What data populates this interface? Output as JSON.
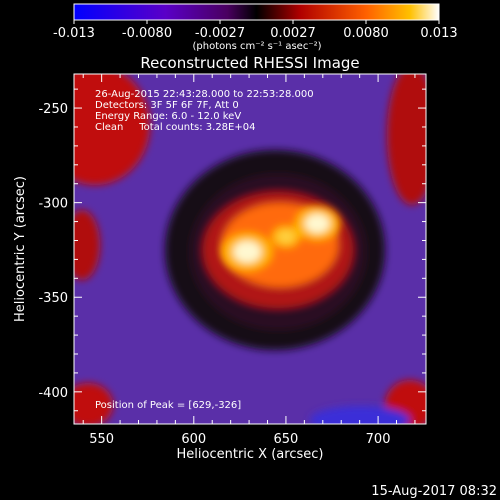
{
  "chart_data": {
    "type": "heatmap",
    "title": "Reconstructed RHESSI Image",
    "xlabel": "Heliocentric X (arcsec)",
    "ylabel": "Heliocentric Y (arcsec)",
    "x_ticks": [
      "550",
      "600",
      "650",
      "700"
    ],
    "x_tick_values": [
      550,
      600,
      650,
      700
    ],
    "y_ticks": [
      "-250",
      "-300",
      "-350",
      "-400"
    ],
    "y_tick_values": [
      -250,
      -300,
      -350,
      -400
    ],
    "xlim": [
      535,
      726
    ],
    "ylim": [
      -417,
      -232
    ],
    "colorbar": {
      "tick_labels": [
        "-0.013",
        "-0.0080",
        "-0.0027",
        "0.0027",
        "0.0080",
        "0.013"
      ],
      "range": [
        -0.013,
        0.013
      ],
      "unit_label": "(photons cm⁻² s⁻¹ asec⁻²)",
      "colors": [
        "#0000ff",
        "#7a00b0",
        "#000000",
        "#c00000",
        "#ff7000",
        "#ffffff"
      ]
    },
    "sources": [
      {
        "x": 629,
        "y": -326,
        "intensity": 0.013
      },
      {
        "x": 667,
        "y": -311,
        "intensity": 0.0115
      },
      {
        "x": 650,
        "y": -318,
        "intensity": 0.0075
      }
    ],
    "annotations": {
      "time_range": "26-Aug-2015 22:43:28.000 to 22:53:28.000",
      "detectors": "Detectors: 3F 5F 6F 7F, Att 0",
      "energy_range": "Energy Range: 6.0 - 12.0 keV",
      "method_counts": "Clean     Total counts: 3.28E+04",
      "peak_position": "Position of Peak = [629,-326]"
    },
    "footer_date": "15-Aug-2017 08:32"
  }
}
